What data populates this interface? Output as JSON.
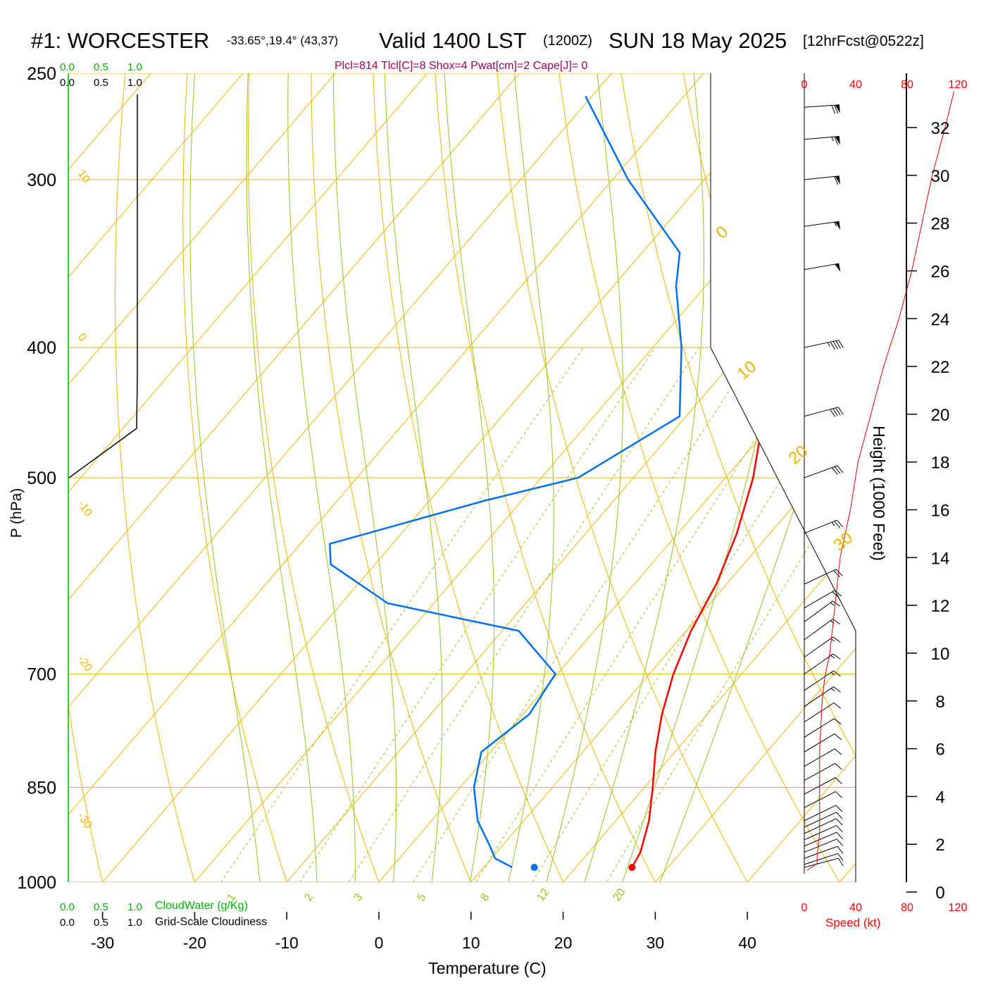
{
  "header": {
    "station": "#1: WORCESTER",
    "coords": "-33.65°,19.4° (43,37)",
    "valid": "Valid 1400 LST",
    "zulu": "(1200Z)",
    "date": "SUN 18 May 2025",
    "forecast": "[12hrFcst@0522z]"
  },
  "indices": "Plcl=814 Tlcl[C]=8 Shox=4 Pwat[cm]=2 Cape[J]= 0",
  "cloud_panel": {
    "top_green": [
      "0.0",
      "0.5",
      "1.0"
    ],
    "top_black": [
      "0.0",
      "0.5",
      "1.0"
    ],
    "bottom_green": [
      "0.0",
      "0.5",
      "1.0"
    ],
    "bottom_black": [
      "0.0",
      "0.5",
      "1.0"
    ],
    "cloudwater_label": "CloudWater (g/Kg)",
    "cloudiness_label": "Grid-Scale Cloudiness"
  },
  "speed_axis": {
    "ticks": [
      "0",
      "40",
      "80",
      "120"
    ],
    "label": "Speed (kt)"
  },
  "colors": {
    "temperature": "#ff0000",
    "dewpoint": "#0070f0",
    "isotherm": "#f0b400",
    "dry_adiabat": "#f0b400",
    "moist_adiabat": "#90c820",
    "mixing_ratio": "#90c820",
    "cloudwater": "#00b400",
    "indices": "#a0005a",
    "speed": "#dd0000"
  },
  "chart_data": {
    "type": "line",
    "title": "#1: WORCESTER Valid 1400 LST (1200Z) SUN 18 May 2025",
    "xlabel": "Temperature (C)",
    "ylabel": "P (hPa)",
    "y2label": "Height (1000 Feet)",
    "y_scale": "log",
    "skew_t": true,
    "xlim_at_1000hPa": [
      -34,
      46
    ],
    "ylim": [
      1025,
      250
    ],
    "x_ticks": [
      "-30",
      "-20",
      "-10",
      "0",
      "10",
      "20",
      "30",
      "40"
    ],
    "pressure_levels": [
      "250",
      "300",
      "400",
      "500",
      "700",
      "850",
      "1000"
    ],
    "height_ticks": [
      "0",
      "2",
      "4",
      "6",
      "8",
      "10",
      "12",
      "14",
      "16",
      "18",
      "20",
      "22",
      "24",
      "26",
      "28",
      "30",
      "32"
    ],
    "isotherm_labels": [
      "-30",
      "-20",
      "-10",
      "0",
      "10",
      "20",
      "30"
    ],
    "mixing_ratio_labels": [
      "1",
      "2",
      "3",
      "5",
      "8",
      "12",
      "20"
    ],
    "dry_adiabat_labels": [
      "10",
      "0",
      "-10",
      "-20",
      "-30"
    ],
    "series": [
      {
        "name": "Temperature",
        "p": [
          975,
          950,
          900,
          850,
          800,
          750,
          700,
          650,
          600,
          550,
          500,
          450,
          400,
          350,
          325,
          300,
          275,
          260
        ],
        "t": [
          26.1,
          25.6,
          23.6,
          20.9,
          17.9,
          15.1,
          12.6,
          10.5,
          8.9,
          6.4,
          3.0,
          -1.6,
          -6.4,
          -11.4,
          -15.3,
          -21.3,
          -29.4,
          -34.6
        ]
      },
      {
        "name": "Dewpoint",
        "p": [
          975,
          960,
          940,
          900,
          850,
          800,
          750,
          700,
          650,
          620,
          580,
          560,
          520,
          500,
          450,
          400,
          360,
          340,
          300,
          260
        ],
        "t": [
          13.1,
          10.4,
          8.7,
          5.0,
          1.5,
          -1.0,
          0.7,
          -0.2,
          -8.2,
          -25.0,
          -34.8,
          -36.8,
          -24.0,
          -16.0,
          -10.7,
          -16.9,
          -23.2,
          -25.9,
          -38.3,
          -50.7
        ]
      },
      {
        "name": "Surface dewpoint",
        "p": [
          975
        ],
        "t": [
          15.5
        ]
      },
      {
        "name": "Speed",
        "height_kft": [
          0.9,
          1.2,
          1.5,
          2.5,
          4,
          6,
          8,
          9,
          10,
          12,
          14,
          16,
          18,
          20,
          22,
          24,
          26,
          28,
          30,
          32,
          33.5
        ],
        "speed_kt": [
          2,
          10,
          10,
          12,
          12,
          12,
          14,
          16,
          20,
          24,
          28,
          36,
          42,
          52,
          62,
          74,
          84,
          92,
          100,
          110,
          117
        ]
      }
    ],
    "winds": {
      "p": [
        975,
        970,
        960,
        950,
        940,
        930,
        920,
        910,
        900,
        880,
        860,
        840,
        820,
        800,
        780,
        760,
        740,
        720,
        700,
        680,
        660,
        640,
        625,
        600,
        550,
        500,
        450,
        400,
        350,
        325,
        300,
        280,
        265
      ],
      "dir": [
        255,
        252,
        250,
        248,
        247,
        246,
        245,
        245,
        244,
        243,
        242,
        241,
        240,
        239,
        238,
        237,
        236,
        236,
        235,
        235,
        234,
        234,
        240,
        245,
        248,
        250,
        255,
        258,
        260,
        262,
        264,
        265,
        266
      ],
      "kt": [
        10,
        10,
        10,
        10,
        12,
        12,
        12,
        12,
        12,
        12,
        12,
        12,
        12,
        12,
        12,
        12,
        13,
        13,
        14,
        14,
        15,
        15,
        18,
        20,
        25,
        30,
        40,
        45,
        50,
        55,
        60,
        65,
        70
      ]
    },
    "grid": true
  }
}
